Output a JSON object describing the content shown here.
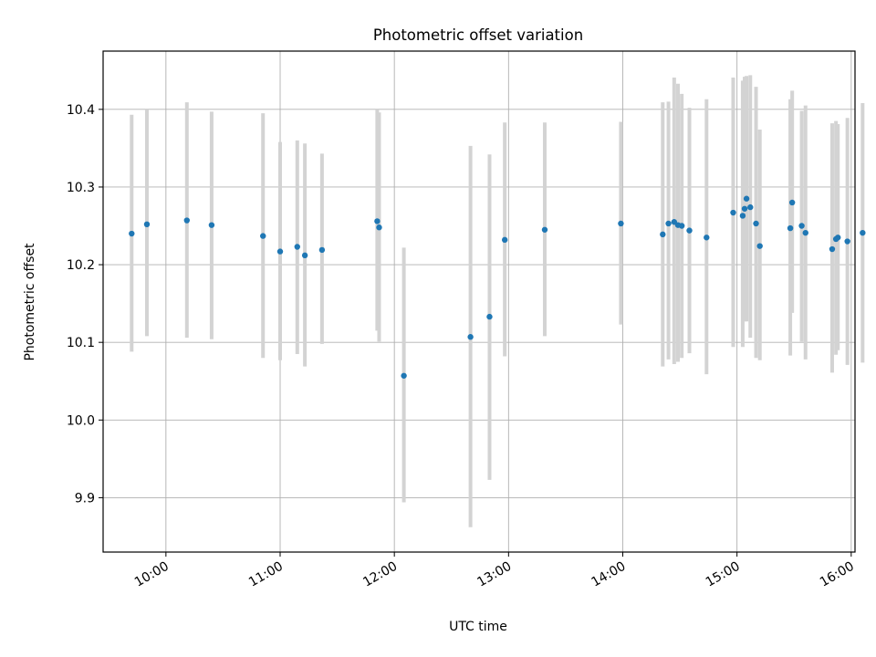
{
  "chart_data": {
    "type": "scatter",
    "title": "Photometric offset variation",
    "xlabel": "UTC time",
    "ylabel": "Photometric offset",
    "xlim": [
      "09:27",
      "16:02"
    ],
    "ylim": [
      9.83,
      10.475
    ],
    "x_ticks": [
      "10:00",
      "11:00",
      "12:00",
      "13:00",
      "14:00",
      "15:00",
      "16:00"
    ],
    "y_ticks": [
      "9.9",
      "10.0",
      "10.1",
      "10.2",
      "10.3",
      "10.4"
    ],
    "grid": true,
    "marker_color": "#1f77b4",
    "errorbar_color": "#d3d3d3",
    "points": [
      {
        "t": "09:42",
        "y": 10.24,
        "lo": 10.088,
        "hi": 10.393
      },
      {
        "t": "09:50",
        "y": 10.252,
        "lo": 10.108,
        "hi": 10.4
      },
      {
        "t": "10:11",
        "y": 10.257,
        "lo": 10.106,
        "hi": 10.409
      },
      {
        "t": "10:24",
        "y": 10.251,
        "lo": 10.104,
        "hi": 10.397
      },
      {
        "t": "10:51",
        "y": 10.237,
        "lo": 10.08,
        "hi": 10.395
      },
      {
        "t": "11:00",
        "y": 10.217,
        "lo": 10.077,
        "hi": 10.358
      },
      {
        "t": "11:09",
        "y": 10.223,
        "lo": 10.085,
        "hi": 10.36
      },
      {
        "t": "11:13",
        "y": 10.212,
        "lo": 10.069,
        "hi": 10.356
      },
      {
        "t": "11:22",
        "y": 10.219,
        "lo": 10.098,
        "hi": 10.343
      },
      {
        "t": "11:51",
        "y": 10.256,
        "lo": 10.115,
        "hi": 10.4
      },
      {
        "t": "11:52",
        "y": 10.248,
        "lo": 10.101,
        "hi": 10.396
      },
      {
        "t": "12:05",
        "y": 10.057,
        "lo": 9.894,
        "hi": 10.222
      },
      {
        "t": "12:40",
        "y": 10.107,
        "lo": 9.862,
        "hi": 10.353
      },
      {
        "t": "12:50",
        "y": 10.133,
        "lo": 9.923,
        "hi": 10.342
      },
      {
        "t": "12:58",
        "y": 10.232,
        "lo": 10.082,
        "hi": 10.383
      },
      {
        "t": "13:19",
        "y": 10.245,
        "lo": 10.108,
        "hi": 10.383
      },
      {
        "t": "13:59",
        "y": 10.253,
        "lo": 10.123,
        "hi": 10.384
      },
      {
        "t": "14:21",
        "y": 10.239,
        "lo": 10.069,
        "hi": 10.409
      },
      {
        "t": "14:24",
        "y": 10.253,
        "lo": 10.078,
        "hi": 10.41
      },
      {
        "t": "14:27",
        "y": 10.255,
        "lo": 10.072,
        "hi": 10.441
      },
      {
        "t": "14:29",
        "y": 10.251,
        "lo": 10.075,
        "hi": 10.433
      },
      {
        "t": "14:31",
        "y": 10.25,
        "lo": 10.08,
        "hi": 10.42
      },
      {
        "t": "14:35",
        "y": 10.244,
        "lo": 10.086,
        "hi": 10.402
      },
      {
        "t": "14:44",
        "y": 10.235,
        "lo": 10.059,
        "hi": 10.413
      },
      {
        "t": "14:58",
        "y": 10.267,
        "lo": 10.094,
        "hi": 10.441
      },
      {
        "t": "15:03",
        "y": 10.263,
        "lo": 10.094,
        "hi": 10.437
      },
      {
        "t": "15:04",
        "y": 10.272,
        "lo": 10.127,
        "hi": 10.442
      },
      {
        "t": "15:05",
        "y": 10.285,
        "lo": 10.127,
        "hi": 10.443
      },
      {
        "t": "15:07",
        "y": 10.274,
        "lo": 10.106,
        "hi": 10.444
      },
      {
        "t": "15:10",
        "y": 10.253,
        "lo": 10.08,
        "hi": 10.429
      },
      {
        "t": "15:12",
        "y": 10.224,
        "lo": 10.077,
        "hi": 10.374
      },
      {
        "t": "15:28",
        "y": 10.247,
        "lo": 10.083,
        "hi": 10.413
      },
      {
        "t": "15:29",
        "y": 10.28,
        "lo": 10.138,
        "hi": 10.424
      },
      {
        "t": "15:34",
        "y": 10.25,
        "lo": 10.101,
        "hi": 10.398
      },
      {
        "t": "15:36",
        "y": 10.241,
        "lo": 10.078,
        "hi": 10.405
      },
      {
        "t": "15:50",
        "y": 10.22,
        "lo": 10.061,
        "hi": 10.382
      },
      {
        "t": "15:52",
        "y": 10.233,
        "lo": 10.084,
        "hi": 10.385
      },
      {
        "t": "15:53",
        "y": 10.235,
        "lo": 10.09,
        "hi": 10.381
      },
      {
        "t": "15:58",
        "y": 10.23,
        "lo": 10.071,
        "hi": 10.389
      },
      {
        "t": "16:06",
        "y": 10.241,
        "lo": 10.074,
        "hi": 10.408
      }
    ]
  }
}
